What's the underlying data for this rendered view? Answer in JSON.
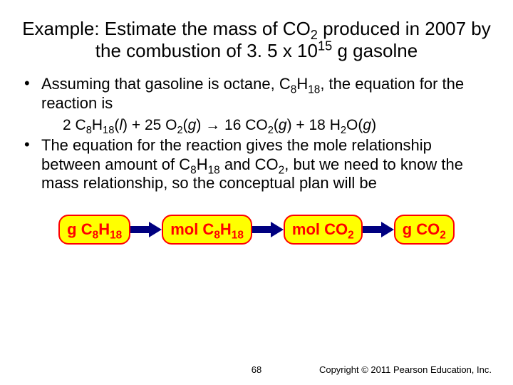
{
  "title_html": "Example: Estimate the mass of CO<sub>2</sub> produced in 2007 by the combustion of 3. 5 x 10<sup>15</sup> g gasolne",
  "bullet1_html": "Assuming that gasoline is octane, C<sub>8</sub>H<sub>18</sub>, the equation for the reaction is",
  "equation_html": "2 C<sub>8</sub>H<sub>18</sub>(<i>l</i>) + 25 O<sub>2</sub>(<i>g</i>) &#8594; 16 CO<sub>2</sub>(<i>g</i>) + 18 H<sub>2</sub>O(<i>g</i>)",
  "bullet2_html": "The equation for the reaction gives the mole relationship between amount of C<sub>8</sub>H<sub>18</sub> and CO<sub>2</sub>, but we need to know the mass relationship, so the conceptual plan will be",
  "flow": {
    "box1_html": "g C<sub>8</sub>H<sub>18</sub>",
    "box2_html": "mol C<sub>8</sub>H<sub>18</sub>",
    "box3_html": "mol CO<sub>2</sub>",
    "box4_html": "g CO<sub>2</sub>",
    "box_bg": "#ffff00",
    "box_border": "#ff0000",
    "box_text_color": "#ff0000",
    "arrow_fill": "#000080"
  },
  "page_number": "68",
  "copyright": "Copyright © 2011 Pearson Education, Inc.",
  "colors": {
    "background": "#ffffff",
    "text": "#000000"
  }
}
